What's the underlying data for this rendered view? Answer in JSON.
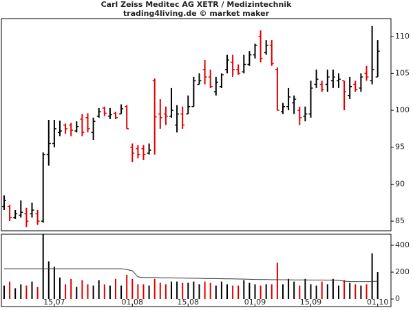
{
  "chart_data": {
    "type": "ohlc",
    "title": "Carl Zeiss Meditec AG XETR / Medizintechnik",
    "subtitle": "trading4living.de © market maker",
    "categories": [
      null,
      null,
      null,
      null,
      null,
      null,
      null,
      null,
      null,
      "15.07",
      null,
      null,
      null,
      null,
      null,
      null,
      null,
      null,
      null,
      null,
      null,
      null,
      null,
      "01.08",
      null,
      null,
      null,
      null,
      null,
      null,
      null,
      null,
      null,
      "15.08",
      null,
      null,
      null,
      null,
      null,
      null,
      null,
      null,
      null,
      null,
      null,
      "01.09",
      null,
      null,
      null,
      null,
      null,
      null,
      null,
      null,
      null,
      "15.09",
      null,
      null,
      null,
      null,
      null,
      null,
      null,
      null,
      null,
      null,
      null,
      "01.10"
    ],
    "open": [
      87,
      87,
      85.5,
      85.8,
      86,
      86,
      86,
      85,
      94,
      95.5,
      97,
      98,
      98,
      97.2,
      98.8,
      99,
      97,
      99.2,
      100.3,
      99.2,
      99.6,
      99.5,
      100.5,
      95,
      94.8,
      94.8,
      94.2,
      104,
      99.5,
      99.5,
      99.2,
      98,
      99.5,
      99.5,
      100.5,
      103.5,
      105.5,
      104.5,
      102.5,
      103.2,
      105.5,
      106.5,
      105.5,
      105.2,
      106.2,
      107.5,
      110,
      107.8,
      108.8,
      105.5,
      99.8,
      100.5,
      101,
      100,
      99.2,
      99.5,
      103.5,
      103.5,
      103.5,
      104,
      104,
      104,
      102,
      103.5,
      103,
      105,
      104,
      104.5
    ],
    "high": [
      88.5,
      87.2,
      86.5,
      87.8,
      86.8,
      87.5,
      86.5,
      94.3,
      98.7,
      98.7,
      98.6,
      98.2,
      98.3,
      98.5,
      99.5,
      99.6,
      99,
      100.3,
      100.5,
      100.3,
      99.8,
      100.8,
      100.7,
      95.5,
      95.3,
      95.3,
      95.5,
      104.3,
      101.5,
      100.5,
      103,
      100.7,
      100.5,
      102,
      104.5,
      105,
      106.8,
      105.5,
      104.5,
      105,
      107.5,
      107.5,
      106.2,
      107.5,
      108,
      109,
      110.8,
      109.5,
      109.5,
      105.8,
      101,
      103,
      102,
      100.5,
      100.5,
      104,
      105.5,
      104,
      105.5,
      105.5,
      105,
      104,
      104.5,
      104,
      105,
      106,
      111.4,
      109.5
    ],
    "low": [
      86.5,
      85,
      85.3,
      85.5,
      84.2,
      85.5,
      84.5,
      84.8,
      92.5,
      95,
      96.5,
      96.8,
      96.5,
      97,
      96.5,
      97,
      96,
      99,
      99.2,
      98.8,
      98.8,
      99.5,
      97.5,
      93,
      93.5,
      93.3,
      94,
      94,
      97.5,
      98,
      99,
      97,
      97.5,
      99.5,
      100.5,
      103.5,
      103.5,
      103,
      102,
      103,
      105,
      104.5,
      104.8,
      105,
      106,
      107,
      106.5,
      107.5,
      106,
      100,
      99.5,
      100,
      99.5,
      98,
      98.5,
      99,
      103,
      102.5,
      102.5,
      103,
      103,
      100,
      101.5,
      102.5,
      102.5,
      104,
      103.5,
      104.5
    ],
    "close": [
      87.8,
      85.5,
      86,
      86.2,
      85,
      86.5,
      85,
      94,
      95.5,
      97.5,
      97.2,
      97.5,
      97.3,
      97.8,
      97,
      97.5,
      98.5,
      99.8,
      99.6,
      99.4,
      99,
      100.2,
      97.5,
      94.2,
      94,
      94,
      94.6,
      99.1,
      99,
      99.2,
      100,
      99.5,
      98,
      100.5,
      104,
      104,
      104.5,
      103.2,
      103.8,
      104.8,
      106.8,
      105.5,
      105,
      106.2,
      107.5,
      108.8,
      107,
      108.8,
      106.3,
      100,
      100.5,
      101.8,
      101.5,
      99,
      99.5,
      103,
      104.2,
      102.8,
      104.5,
      104.5,
      104.2,
      102.5,
      103.2,
      102.8,
      104.5,
      104.5,
      105.5,
      108
    ],
    "volume": [
      100,
      130,
      80,
      110,
      100,
      130,
      90,
      480,
      280,
      240,
      160,
      110,
      150,
      90,
      140,
      110,
      100,
      140,
      110,
      100,
      150,
      100,
      180,
      150,
      110,
      110,
      100,
      150,
      120,
      110,
      130,
      130,
      120,
      120,
      130,
      110,
      130,
      120,
      100,
      130,
      110,
      100,
      100,
      140,
      120,
      110,
      100,
      110,
      110,
      270,
      110,
      150,
      130,
      100,
      150,
      110,
      100,
      130,
      110,
      150,
      100,
      140,
      120,
      110,
      100,
      110,
      340,
      200
    ],
    "volume_ma": [
      225,
      225,
      225,
      225,
      225,
      225,
      225,
      225,
      225,
      225,
      225,
      225,
      225,
      225,
      225,
      225,
      225,
      225,
      225,
      225,
      225,
      225,
      220,
      210,
      165,
      160,
      160,
      160,
      158,
      158,
      157,
      156,
      156,
      155,
      155,
      154,
      153,
      152,
      152,
      151,
      150,
      150,
      149,
      148,
      147,
      146,
      145,
      145,
      144,
      144,
      143,
      143,
      142,
      142,
      142,
      141,
      141,
      141,
      140,
      140,
      139,
      133,
      131,
      130,
      130,
      130,
      131,
      133
    ],
    "ylim": [
      83.7,
      112.4
    ],
    "yticks": [
      85,
      90,
      95,
      100,
      105,
      110
    ],
    "y2lim": [
      -56,
      482
    ],
    "y2ticks": [
      0,
      200,
      400
    ],
    "up_color": "#000000",
    "down_color": "#e00000",
    "ma_color": "#333333"
  }
}
